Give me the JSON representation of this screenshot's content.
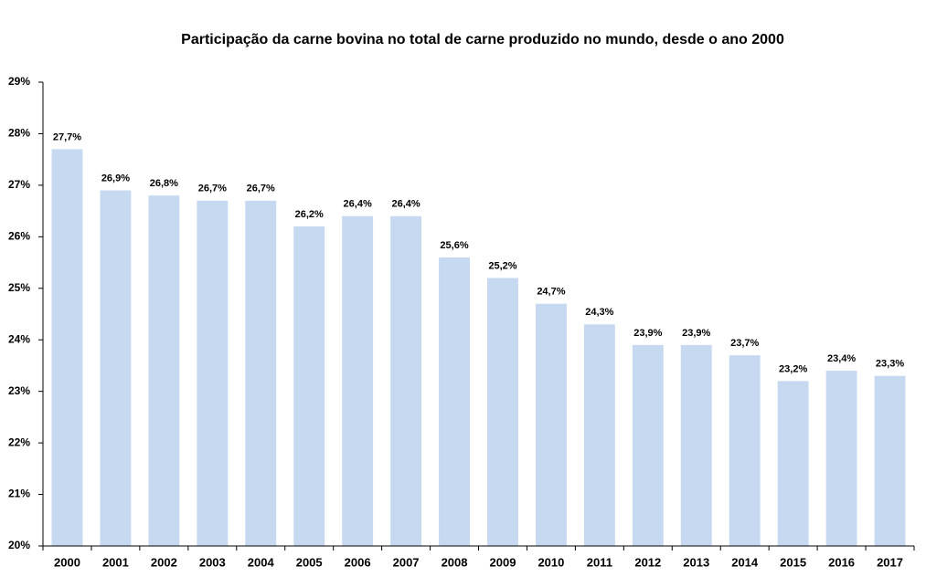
{
  "chart_data": {
    "type": "bar",
    "title": "Participação da carne bovina no total de carne produzido no mundo, desde o ano 2000",
    "categories": [
      "2000",
      "2001",
      "2002",
      "2003",
      "2004",
      "2005",
      "2006",
      "2007",
      "2008",
      "2009",
      "2010",
      "2011",
      "2012",
      "2013",
      "2014",
      "2015",
      "2016",
      "2017"
    ],
    "values": [
      27.7,
      26.9,
      26.8,
      26.7,
      26.7,
      26.2,
      26.4,
      26.4,
      25.6,
      25.2,
      24.7,
      24.3,
      23.9,
      23.9,
      23.7,
      23.2,
      23.4,
      23.3
    ],
    "value_labels": [
      "27,7%",
      "26,9%",
      "26,8%",
      "26,7%",
      "26,7%",
      "26,2%",
      "26,4%",
      "26,4%",
      "25,6%",
      "25,2%",
      "24,7%",
      "24,3%",
      "23,9%",
      "23,9%",
      "23,7%",
      "23,2%",
      "23,4%",
      "23,3%"
    ],
    "color": "#c6d9f1",
    "ylim": [
      20,
      29
    ],
    "yticks": [
      {
        "value": 20,
        "label": "20%"
      },
      {
        "value": 21,
        "label": "21%"
      },
      {
        "value": 22,
        "label": "22%"
      },
      {
        "value": 23,
        "label": "23%"
      },
      {
        "value": 24,
        "label": "24%"
      },
      {
        "value": 25,
        "label": "25%"
      },
      {
        "value": 26,
        "label": "26%"
      },
      {
        "value": 27,
        "label": "27%"
      },
      {
        "value": 28,
        "label": "28%"
      },
      {
        "value": 29,
        "label": "29%"
      }
    ],
    "grid": false
  }
}
